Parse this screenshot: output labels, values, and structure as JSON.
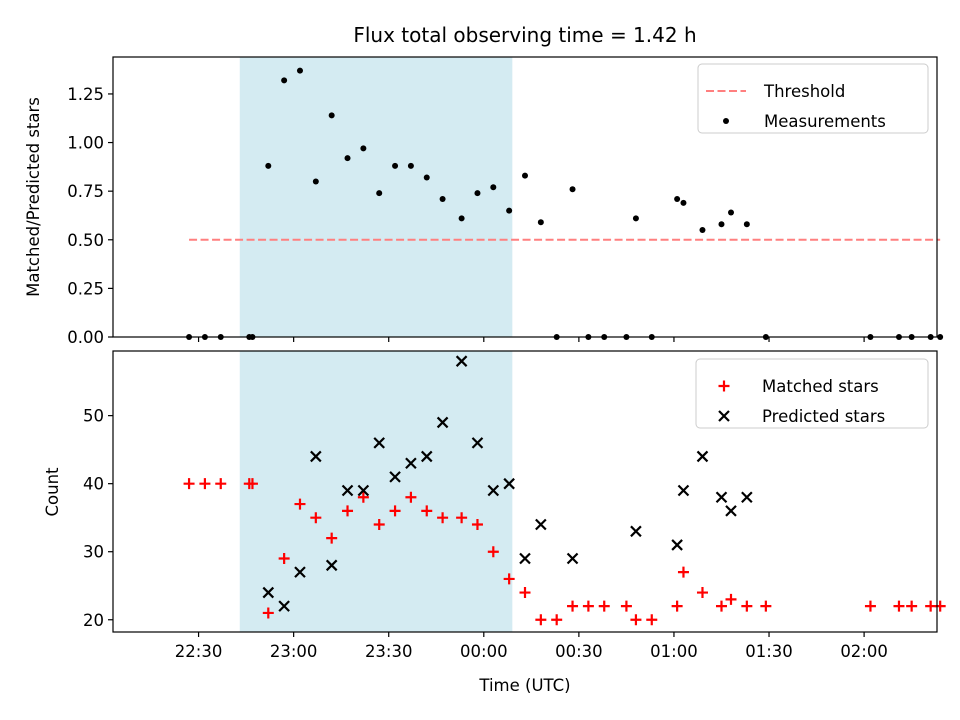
{
  "title": "Flux total observing time = 1.42 h",
  "colors": {
    "threshold": "#ff7f7f",
    "measurement": "#000000",
    "matched": "#ff0000",
    "predicted": "#000000",
    "shade": "#add8e6"
  },
  "chart_data": [
    {
      "type": "scatter",
      "panel": "top",
      "ylabel": "Matched/Predicted stars",
      "ylim": [
        0,
        1.44
      ],
      "yticks": [
        0.0,
        0.25,
        0.5,
        0.75,
        1.0,
        1.25
      ],
      "ytick_labels": [
        "0.00",
        "0.25",
        "0.50",
        "0.75",
        "1.00",
        "1.25"
      ],
      "xlim_minutes": [
        -57,
        203
      ],
      "shaded_span_minutes": [
        -17,
        69
      ],
      "shaded_span_labels": [
        "22:43",
        "00:09"
      ],
      "legend_position": "top-right",
      "series": [
        {
          "name": "Threshold",
          "style": "dashed-line",
          "x_minutes": [
            -33,
            204
          ],
          "y": [
            0.5,
            0.5
          ]
        },
        {
          "name": "Measurements",
          "style": "dot",
          "points": [
            {
              "x": -33,
              "y": 0.0
            },
            {
              "x": -28,
              "y": 0.0
            },
            {
              "x": -23,
              "y": 0.0
            },
            {
              "x": -14,
              "y": 0.0
            },
            {
              "x": -13,
              "y": 0.0
            },
            {
              "x": -8,
              "y": 0.88
            },
            {
              "x": -3,
              "y": 1.32
            },
            {
              "x": 2,
              "y": 1.37
            },
            {
              "x": 7,
              "y": 0.8
            },
            {
              "x": 12,
              "y": 1.14
            },
            {
              "x": 17,
              "y": 0.92
            },
            {
              "x": 22,
              "y": 0.97
            },
            {
              "x": 27,
              "y": 0.74
            },
            {
              "x": 32,
              "y": 0.88
            },
            {
              "x": 37,
              "y": 0.88
            },
            {
              "x": 42,
              "y": 0.82
            },
            {
              "x": 47,
              "y": 0.71
            },
            {
              "x": 53,
              "y": 0.61
            },
            {
              "x": 58,
              "y": 0.74
            },
            {
              "x": 63,
              "y": 0.77
            },
            {
              "x": 68,
              "y": 0.65
            },
            {
              "x": 73,
              "y": 0.83
            },
            {
              "x": 78,
              "y": 0.59
            },
            {
              "x": 83,
              "y": 0.0
            },
            {
              "x": 88,
              "y": 0.76
            },
            {
              "x": 93,
              "y": 0.0
            },
            {
              "x": 98,
              "y": 0.0
            },
            {
              "x": 105,
              "y": 0.0
            },
            {
              "x": 108,
              "y": 0.61
            },
            {
              "x": 113,
              "y": 0.0
            },
            {
              "x": 121,
              "y": 0.71
            },
            {
              "x": 123,
              "y": 0.69
            },
            {
              "x": 129,
              "y": 0.55
            },
            {
              "x": 135,
              "y": 0.58
            },
            {
              "x": 138,
              "y": 0.64
            },
            {
              "x": 143,
              "y": 0.58
            },
            {
              "x": 149,
              "y": 0.0
            },
            {
              "x": 182,
              "y": 0.0
            },
            {
              "x": 191,
              "y": 0.0
            },
            {
              "x": 195,
              "y": 0.0
            },
            {
              "x": 201,
              "y": 0.0
            },
            {
              "x": 204,
              "y": 0.0
            }
          ]
        }
      ]
    },
    {
      "type": "scatter",
      "panel": "bottom",
      "xlabel": "Time (UTC)",
      "ylabel": "Count",
      "ylim": [
        18.2,
        59.5
      ],
      "yticks": [
        20,
        30,
        40,
        50
      ],
      "ytick_labels": [
        "20",
        "30",
        "40",
        "50"
      ],
      "xlim_minutes": [
        -57,
        203
      ],
      "xticks_minutes": [
        -30,
        0,
        30,
        60,
        90,
        120,
        150,
        180
      ],
      "xtick_labels": [
        "22:30",
        "23:00",
        "23:30",
        "00:00",
        "00:30",
        "01:00",
        "01:30",
        "02:00"
      ],
      "shaded_span_minutes": [
        -17,
        69
      ],
      "legend_position": "top-right",
      "series": [
        {
          "name": "Matched stars",
          "marker": "plus",
          "points": [
            {
              "x": -33,
              "y": 40
            },
            {
              "x": -28,
              "y": 40
            },
            {
              "x": -23,
              "y": 40
            },
            {
              "x": -14,
              "y": 40
            },
            {
              "x": -13,
              "y": 40
            },
            {
              "x": -8,
              "y": 21
            },
            {
              "x": -3,
              "y": 29
            },
            {
              "x": 2,
              "y": 37
            },
            {
              "x": 7,
              "y": 35
            },
            {
              "x": 12,
              "y": 32
            },
            {
              "x": 17,
              "y": 36
            },
            {
              "x": 22,
              "y": 38
            },
            {
              "x": 27,
              "y": 34
            },
            {
              "x": 32,
              "y": 36
            },
            {
              "x": 37,
              "y": 38
            },
            {
              "x": 42,
              "y": 36
            },
            {
              "x": 47,
              "y": 35
            },
            {
              "x": 53,
              "y": 35
            },
            {
              "x": 58,
              "y": 34
            },
            {
              "x": 63,
              "y": 30
            },
            {
              "x": 68,
              "y": 26
            },
            {
              "x": 73,
              "y": 24
            },
            {
              "x": 78,
              "y": 20
            },
            {
              "x": 83,
              "y": 20
            },
            {
              "x": 88,
              "y": 22
            },
            {
              "x": 93,
              "y": 22
            },
            {
              "x": 98,
              "y": 22
            },
            {
              "x": 105,
              "y": 22
            },
            {
              "x": 108,
              "y": 20
            },
            {
              "x": 113,
              "y": 20
            },
            {
              "x": 121,
              "y": 22
            },
            {
              "x": 123,
              "y": 27
            },
            {
              "x": 129,
              "y": 24
            },
            {
              "x": 135,
              "y": 22
            },
            {
              "x": 138,
              "y": 23
            },
            {
              "x": 143,
              "y": 22
            },
            {
              "x": 149,
              "y": 22
            },
            {
              "x": 182,
              "y": 22
            },
            {
              "x": 191,
              "y": 22
            },
            {
              "x": 195,
              "y": 22
            },
            {
              "x": 201,
              "y": 22
            },
            {
              "x": 204,
              "y": 22
            }
          ]
        },
        {
          "name": "Predicted stars",
          "marker": "x",
          "points": [
            {
              "x": -8,
              "y": 24
            },
            {
              "x": -3,
              "y": 22
            },
            {
              "x": 2,
              "y": 27
            },
            {
              "x": 7,
              "y": 44
            },
            {
              "x": 12,
              "y": 28
            },
            {
              "x": 17,
              "y": 39
            },
            {
              "x": 22,
              "y": 39
            },
            {
              "x": 27,
              "y": 46
            },
            {
              "x": 32,
              "y": 41
            },
            {
              "x": 37,
              "y": 43
            },
            {
              "x": 42,
              "y": 44
            },
            {
              "x": 47,
              "y": 49
            },
            {
              "x": 53,
              "y": 58
            },
            {
              "x": 58,
              "y": 46
            },
            {
              "x": 63,
              "y": 39
            },
            {
              "x": 68,
              "y": 40
            },
            {
              "x": 73,
              "y": 29
            },
            {
              "x": 78,
              "y": 34
            },
            {
              "x": 88,
              "y": 29
            },
            {
              "x": 108,
              "y": 33
            },
            {
              "x": 121,
              "y": 31
            },
            {
              "x": 123,
              "y": 39
            },
            {
              "x": 129,
              "y": 44
            },
            {
              "x": 135,
              "y": 38
            },
            {
              "x": 138,
              "y": 36
            },
            {
              "x": 143,
              "y": 38
            }
          ]
        }
      ]
    }
  ]
}
